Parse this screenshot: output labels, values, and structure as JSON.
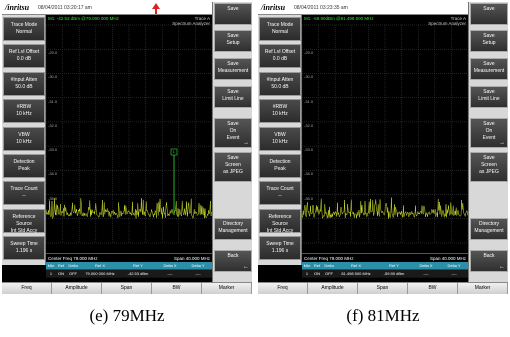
{
  "panels": [
    {
      "id": "e",
      "brand": "/inritsu",
      "datetime": "08/04/2011 03:20:17 am",
      "marker_info": "M1: -42.53 dBm @79.000 000 MHz",
      "trace_label": "Trace A",
      "mode_label": "Spectrum Analyzer",
      "grid_labels": [
        "-29.0",
        "-30.0",
        "-31.0",
        "-32.0",
        "-33.0",
        "-34.0",
        "-35.0"
      ],
      "marker_tag": "1",
      "left_items": [
        {
          "label": "Trace Mode",
          "value": "Normal"
        },
        {
          "label": "Ref Lvl Offset",
          "value": "0.0 dB"
        },
        {
          "label": "#Input Atten",
          "value": "50.0 dB"
        },
        {
          "label": "#RBW",
          "value": "10 kHz"
        },
        {
          "label": "VBW",
          "value": "10 kHz"
        },
        {
          "label": "Detection",
          "value": "Peak"
        },
        {
          "label": "Trace Count",
          "value": "--"
        },
        {
          "label": "Reference Source",
          "value": "Int Std Accy"
        },
        {
          "label": "Sweep Time",
          "value": "1.196 s"
        }
      ],
      "center_freq": "Center Freq 79.000 MHz",
      "span_text": "Span 40.000 MHz",
      "marker_headers": [
        "Mkr",
        "Ref",
        "Delta",
        "Ref X",
        "Ref Y",
        "Delta X",
        "Delta Y"
      ],
      "marker_row": [
        "1",
        "ON",
        "OFF",
        "79.000 000 MHz",
        "-42.53 dBm",
        "----",
        "----"
      ],
      "right_items": [
        {
          "lines": [
            "Save"
          ]
        },
        {
          "lines": [
            "Save",
            "Setup"
          ]
        },
        {
          "lines": [
            "Save",
            "Measurement"
          ]
        },
        {
          "lines": [
            "Save",
            "Limit Line"
          ]
        },
        {
          "lines": [
            "Save",
            "On",
            "Event"
          ],
          "arrow": "→"
        },
        {
          "lines": [
            "Save",
            "Screen",
            "as JPEG"
          ]
        },
        {
          "lines": [
            "Directory",
            "Management"
          ]
        },
        {
          "lines": [
            "Back"
          ],
          "arrow": "←"
        }
      ],
      "bottom_tabs": [
        "Freq",
        "Amplitude",
        "Span",
        "BW",
        "Marker"
      ],
      "caption": "(e)  79MHz"
    },
    {
      "id": "f",
      "brand": "/inritsu",
      "datetime": "08/04/2011 03:23:35 am",
      "marker_info": "M1: -59.90dBm @81.498 500 MHz",
      "trace_label": "Trace A",
      "mode_label": "Spectrum Analyzer",
      "grid_labels": [
        "-29.0",
        "-30.0",
        "-31.0",
        "-32.0",
        "-33.0",
        "-34.0",
        "-35.0"
      ],
      "marker_tag": "",
      "left_items": [
        {
          "label": "Trace Mode",
          "value": "Normal"
        },
        {
          "label": "Ref Lvl Offset",
          "value": "0.0 dB"
        },
        {
          "label": "#Input Atten",
          "value": "50.0 dB"
        },
        {
          "label": "#RBW",
          "value": "10 kHz"
        },
        {
          "label": "VBW",
          "value": "10 kHz"
        },
        {
          "label": "Detection",
          "value": "Peak"
        },
        {
          "label": "Trace Count",
          "value": "--"
        },
        {
          "label": "Reference Source",
          "value": "Int Std Accy"
        },
        {
          "label": "Sweep Time",
          "value": "1.196 s"
        }
      ],
      "center_freq": "Center Freq 79.000 MHz",
      "span_text": "Span 40.000 MHz",
      "marker_headers": [
        "Mkr",
        "Ref",
        "Delta",
        "Ref X",
        "Ref Y",
        "Delta X",
        "Delta Y"
      ],
      "marker_row": [
        "1",
        "ON",
        "OFF",
        "81.498 500 MHz",
        "-59.90 dBm",
        "----",
        "----"
      ],
      "right_items": [
        {
          "lines": [
            "Save"
          ]
        },
        {
          "lines": [
            "Save",
            "Setup"
          ]
        },
        {
          "lines": [
            "Save",
            "Measurement"
          ]
        },
        {
          "lines": [
            "Save",
            "Limit Line"
          ]
        },
        {
          "lines": [
            "Save",
            "On",
            "Event"
          ],
          "arrow": "→"
        },
        {
          "lines": [
            "Save",
            "Screen",
            "as JPEG"
          ]
        },
        {
          "lines": [
            "Directory",
            "Management"
          ]
        },
        {
          "lines": [
            "Back"
          ],
          "arrow": "←"
        }
      ],
      "bottom_tabs": [
        "Freq",
        "Amplitude",
        "Span",
        "BW",
        "Marker"
      ],
      "caption": "(f)  81MHz"
    }
  ],
  "colors": {
    "trace": "#d8e830",
    "marker": "#2fe02f",
    "grid": "#444444",
    "header": "#2a8fa8"
  }
}
